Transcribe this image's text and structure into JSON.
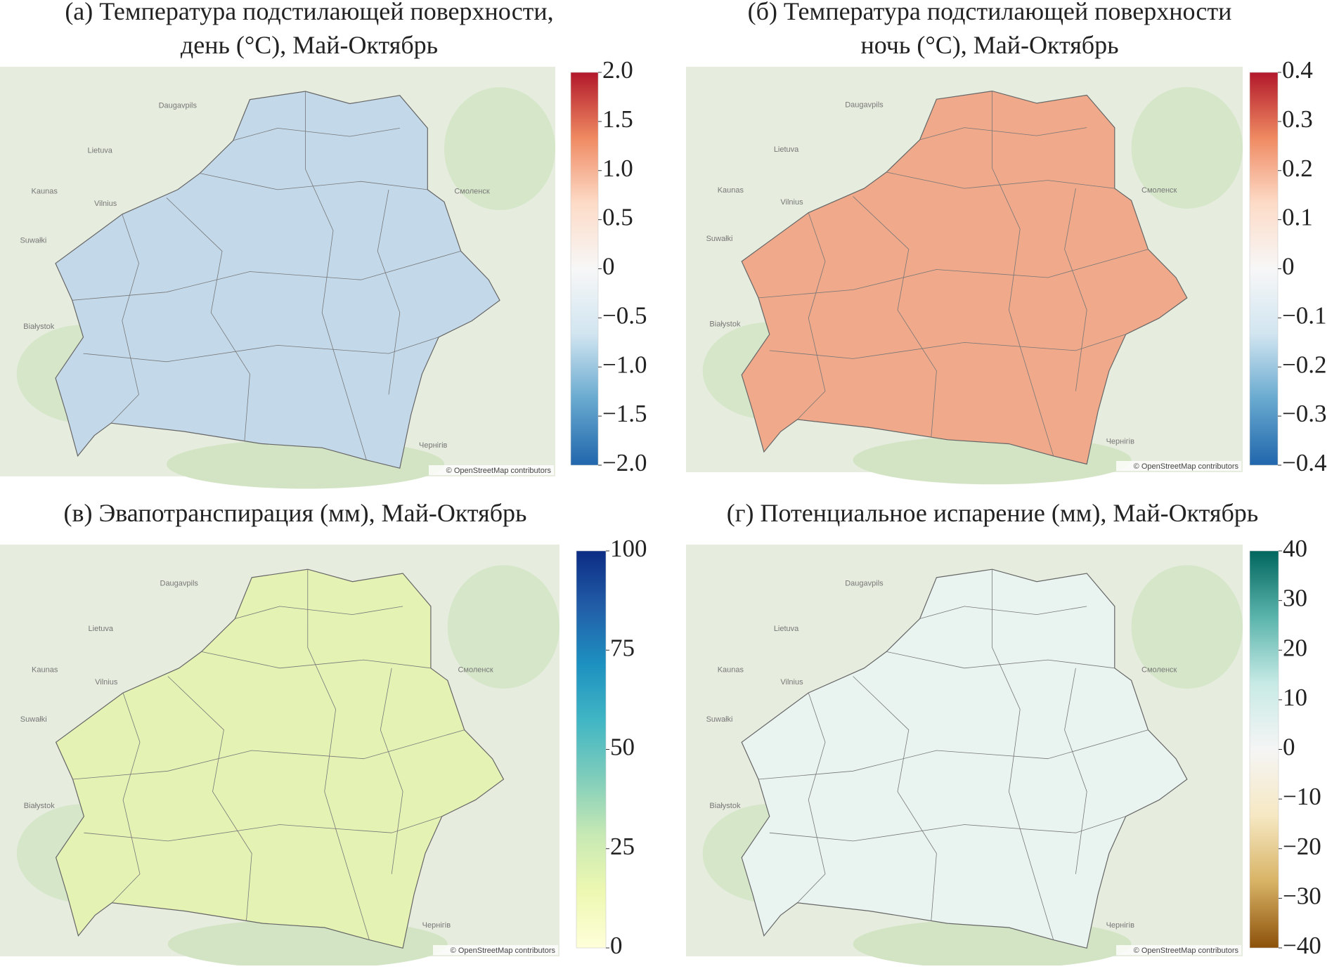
{
  "chart_data": [
    {
      "type": "choropleth",
      "title": [
        "(а) Температура подстилающей поверхности,",
        "день (°С), Май-Октябрь"
      ],
      "fill": "#c3d9ea",
      "colormap": [
        "#2166ac",
        "#67a9cf",
        "#d1e5f0",
        "#f7f7f7",
        "#fddbc7",
        "#ef8a62",
        "#b2182b"
      ],
      "ylim": [
        -2,
        2
      ],
      "yticks": [
        {
          "value": 2,
          "label": "2.0"
        },
        1.5,
        {
          "value": 1,
          "label": "1.0"
        },
        0.5,
        0,
        {
          "value": -0.5,
          "label": "−0.5"
        },
        {
          "value": -1,
          "label": "−1.0"
        },
        {
          "value": -1.5,
          "label": "−1.5"
        },
        {
          "value": -2,
          "label": "−2.0"
        }
      ],
      "attribution": "© OpenStreetMap contributors",
      "basemap_labels": [
        "Lietuva",
        "Vilnius",
        "Kaunas",
        "Daugavpils",
        "Смоленск",
        "Białystok",
        "Suwałki",
        "Чернігів"
      ]
    },
    {
      "type": "choropleth",
      "title": [
        "(б) Температура подстилающей поверхности",
        "ночь (°С), Май-Октябрь"
      ],
      "fill": "#f0a98a",
      "colormap": [
        "#2166ac",
        "#67a9cf",
        "#d1e5f0",
        "#f7f7f7",
        "#fddbc7",
        "#ef8a62",
        "#b2182b"
      ],
      "ylim": [
        -0.4,
        0.4
      ],
      "yticks": [
        0.4,
        0.3,
        0.2,
        0.1,
        0,
        {
          "value": -0.1,
          "label": "−0.1"
        },
        {
          "value": -0.2,
          "label": "−0.2"
        },
        {
          "value": -0.3,
          "label": "−0.3"
        },
        {
          "value": -0.4,
          "label": "−0.4"
        }
      ],
      "attribution": "© OpenStreetMap contributors",
      "basemap_labels": [
        "Lietuva",
        "Vilnius",
        "Kaunas",
        "Daugavpils",
        "Смоленск",
        "Białystok",
        "Suwałki",
        "Чернігів"
      ]
    },
    {
      "type": "choropleth",
      "title": [
        "(в) Эвапотранспирация (мм), Май-Октябрь"
      ],
      "fill": "#e4f2b4",
      "colormap": [
        "#ffffd9",
        "#edf8b1",
        "#c7e9b4",
        "#7fcdbb",
        "#41b6c4",
        "#1d91c0",
        "#225ea8",
        "#0c2c84"
      ],
      "ylim": [
        0,
        100
      ],
      "yticks": [
        100,
        75,
        50,
        25,
        0
      ],
      "attribution": "© OpenStreetMap contributors",
      "basemap_labels": [
        "Lietuva",
        "Vilnius",
        "Kaunas",
        "Daugavpils",
        "Смоленск",
        "Białystok",
        "Suwałki",
        "Чернігів"
      ]
    },
    {
      "type": "choropleth",
      "title": [
        "(г)  Потенциальное испарение (мм), Май-Октябрь"
      ],
      "fill": "#e9f4f1",
      "colormap": [
        "#8c510a",
        "#d8b365",
        "#f6e8c3",
        "#f5f5f5",
        "#c7eae5",
        "#5ab4ac",
        "#01665e"
      ],
      "ylim": [
        -40,
        40
      ],
      "yticks": [
        40,
        30,
        20,
        10,
        0,
        {
          "value": -10,
          "label": "−10"
        },
        {
          "value": -20,
          "label": "−20"
        },
        {
          "value": -30,
          "label": "−30"
        },
        {
          "value": -40,
          "label": "−40"
        }
      ],
      "attribution": "© OpenStreetMap contributors",
      "basemap_labels": [
        "Lietuva",
        "Vilnius",
        "Kaunas",
        "Daugavpils",
        "Смоленск",
        "Białystok",
        "Suwałki",
        "Чернігів"
      ]
    }
  ]
}
